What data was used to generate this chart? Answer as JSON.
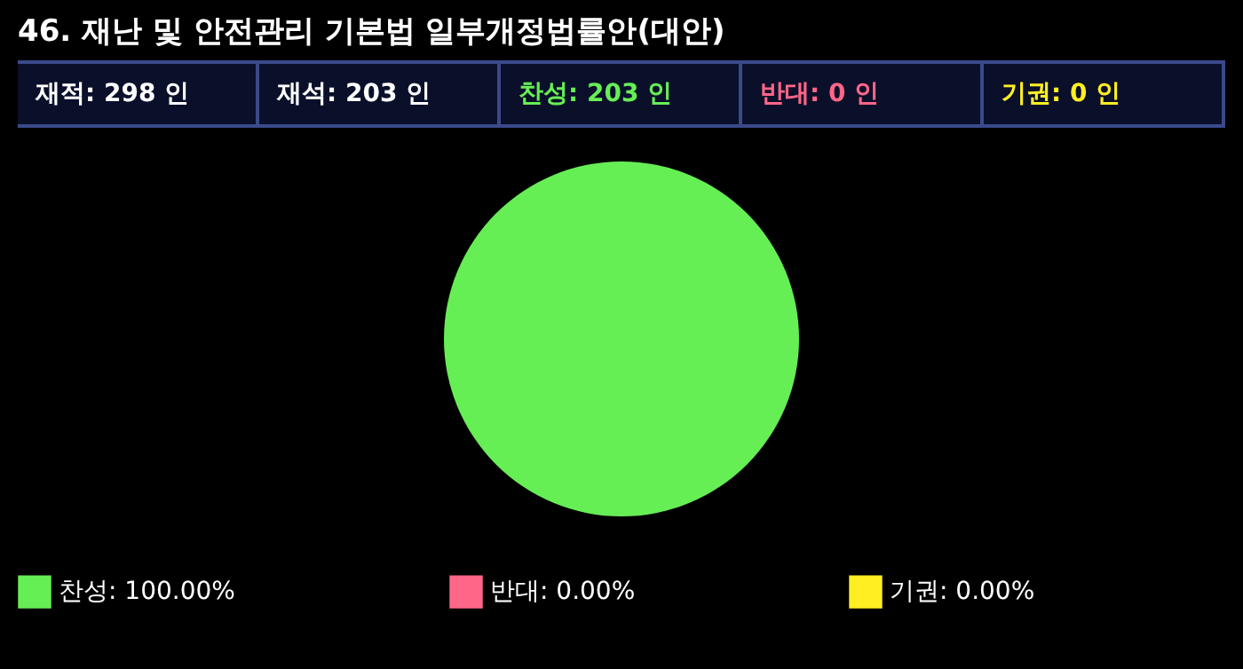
{
  "chart_data": {
    "type": "pie",
    "title": "46. 재난 및 안전관리 기본법 일부개정법률안(대안)",
    "annotations": [
      "재적: 298 인",
      "재석: 203 인",
      "찬성: 203 인",
      "반대:  0 인",
      "기권:  0 인"
    ],
    "categories": [
      "찬성",
      "반대",
      "기권"
    ],
    "values": [
      100,
      0,
      0
    ],
    "colors": [
      "#66ee55",
      "#ff6688",
      "#ffee22"
    ],
    "value_labels": [
      "100.00%",
      "0.00%",
      "0.00%"
    ],
    "legend": "bottom"
  }
}
